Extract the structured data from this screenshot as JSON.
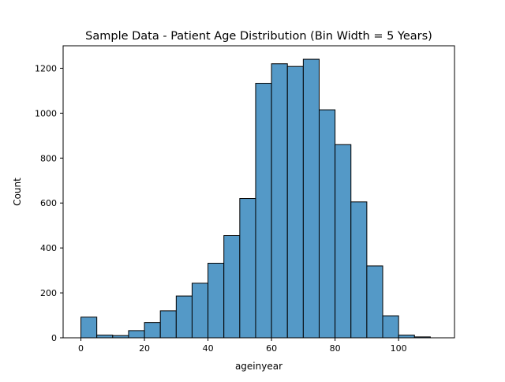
{
  "chart_data": {
    "type": "bar",
    "title": "Sample Data - Patient Age Distribution (Bin Width = 5 Years)",
    "xlabel": "ageinyear",
    "ylabel": "Count",
    "bin_width": 5,
    "x_start": 0,
    "bin_edges": [
      0,
      5,
      10,
      15,
      20,
      25,
      30,
      35,
      40,
      45,
      50,
      55,
      60,
      65,
      70,
      75,
      80,
      85,
      90,
      95,
      100,
      105,
      110
    ],
    "values": [
      92,
      12,
      10,
      32,
      68,
      120,
      186,
      243,
      332,
      455,
      620,
      1133,
      1220,
      1208,
      1240,
      1015,
      860,
      605,
      320,
      98,
      12,
      4
    ],
    "xlim": [
      -5.6,
      117.6
    ],
    "ylim": [
      0,
      1300
    ],
    "xticks": [
      0,
      20,
      40,
      60,
      80,
      100
    ],
    "yticks": [
      0,
      200,
      400,
      600,
      800,
      1000,
      1200
    ],
    "bar_color": "#5499c7",
    "edge_color": "#000000",
    "grid": false,
    "legend": "none"
  }
}
